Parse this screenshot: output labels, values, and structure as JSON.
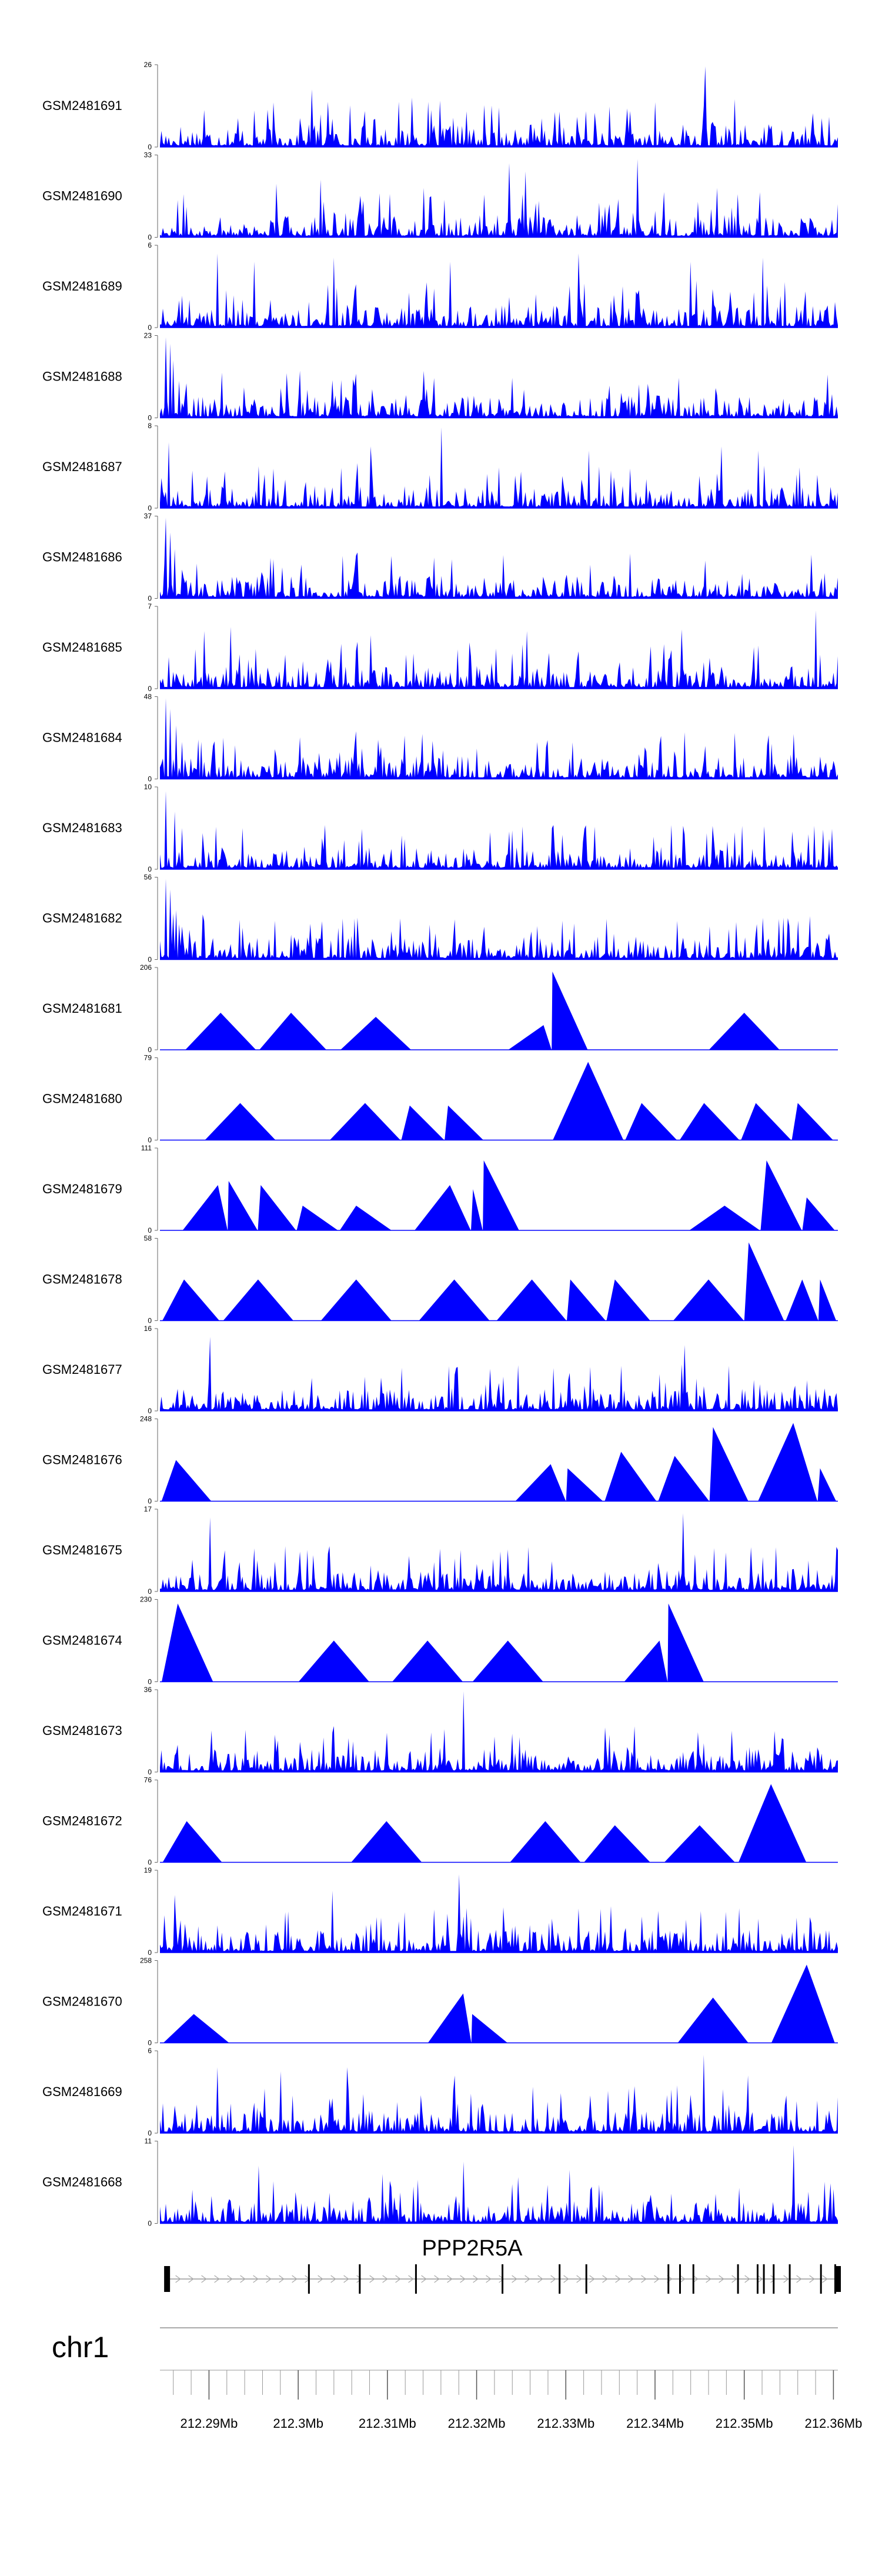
{
  "chart_data": {
    "type": "area",
    "title": "",
    "color": "#0000ff",
    "xlim_mb": [
      212.2845,
      212.3605
    ],
    "ylim_min": 0,
    "tracks": [
      {
        "sample": "GSM2481691",
        "ymax": 26,
        "style": "dense",
        "peaks": [
          [
            212.2895,
            0.45
          ],
          [
            212.2933,
            0.35
          ],
          [
            212.3015,
            0.7
          ],
          [
            212.3033,
            0.55
          ],
          [
            212.3127,
            0.6
          ],
          [
            212.3313,
            0.3
          ],
          [
            212.3456,
            0.98
          ],
          [
            212.3587,
            0.35
          ]
        ]
      },
      {
        "sample": "GSM2481690",
        "ymax": 33,
        "style": "sparse",
        "peaks": [
          [
            212.2975,
            0.65
          ],
          [
            212.3025,
            0.7
          ],
          [
            212.314,
            0.6
          ],
          [
            212.3237,
            0.9
          ],
          [
            212.3255,
            0.8
          ],
          [
            212.338,
            0.95
          ],
          [
            212.341,
            0.55
          ],
          [
            212.347,
            0.6
          ]
        ]
      },
      {
        "sample": "GSM2481689",
        "ymax": 6,
        "style": "dense",
        "peaks": [
          [
            212.291,
            0.9
          ],
          [
            212.295,
            0.8
          ],
          [
            212.304,
            0.85
          ],
          [
            212.317,
            0.8
          ],
          [
            212.3315,
            0.9
          ],
          [
            212.344,
            0.8
          ],
          [
            212.352,
            0.85
          ]
        ]
      },
      {
        "sample": "GSM2481688",
        "ymax": 23,
        "style": "dense",
        "peaks": [
          [
            212.2852,
            0.98
          ],
          [
            212.2856,
            0.9
          ],
          [
            212.286,
            0.7
          ],
          [
            212.2866,
            0.45
          ],
          [
            212.2875,
            0.25
          ]
        ]
      },
      {
        "sample": "GSM2481687",
        "ymax": 8,
        "style": "dense",
        "peaks": [
          [
            212.2855,
            0.8
          ],
          [
            212.3082,
            0.75
          ],
          [
            212.316,
            0.98
          ],
          [
            212.3325,
            0.7
          ],
          [
            212.3475,
            0.75
          ],
          [
            212.3515,
            0.7
          ]
        ]
      },
      {
        "sample": "GSM2481686",
        "ymax": 37,
        "style": "dense",
        "peaks": [
          [
            212.2852,
            0.98
          ],
          [
            212.2856,
            0.8
          ],
          [
            212.2862,
            0.6
          ],
          [
            212.287,
            0.35
          ],
          [
            212.288,
            0.2
          ]
        ]
      },
      {
        "sample": "GSM2481685",
        "ymax": 7,
        "style": "dense",
        "peaks": [
          [
            212.2895,
            0.7
          ],
          [
            212.2925,
            0.75
          ],
          [
            212.3082,
            0.65
          ],
          [
            212.3256,
            0.7
          ],
          [
            212.343,
            0.72
          ],
          [
            212.358,
            0.95
          ]
        ]
      },
      {
        "sample": "GSM2481684",
        "ymax": 48,
        "style": "dense",
        "peaks": [
          [
            212.2852,
            0.98
          ],
          [
            212.2857,
            0.85
          ],
          [
            212.2863,
            0.65
          ],
          [
            212.287,
            0.45
          ],
          [
            212.288,
            0.25
          ]
        ]
      },
      {
        "sample": "GSM2481683",
        "ymax": 10,
        "style": "dense",
        "peaks": [
          [
            212.2852,
            0.95
          ],
          [
            212.2862,
            0.7
          ],
          [
            212.287,
            0.5
          ],
          [
            212.3215,
            0.45
          ],
          [
            212.3285,
            0.5
          ],
          [
            212.349,
            0.45
          ]
        ]
      },
      {
        "sample": "GSM2481682",
        "ymax": 56,
        "style": "dense",
        "peaks": [
          [
            212.2852,
            0.98
          ],
          [
            212.2857,
            0.85
          ],
          [
            212.2863,
            0.6
          ],
          [
            212.287,
            0.4
          ],
          [
            212.288,
            0.2
          ]
        ]
      },
      {
        "sample": "GSM2481681",
        "ymax": 206,
        "style": "spiky",
        "peaks": [
          [
            212.2913,
            0.45
          ],
          [
            212.2992,
            0.45
          ],
          [
            212.3087,
            0.4
          ],
          [
            212.3275,
            0.3
          ],
          [
            212.3285,
            0.95
          ],
          [
            212.35,
            0.45
          ]
        ]
      },
      {
        "sample": "GSM2481680",
        "ymax": 79,
        "style": "spiky",
        "peaks": [
          [
            212.2935,
            0.45
          ],
          [
            212.3075,
            0.45
          ],
          [
            212.3125,
            0.42
          ],
          [
            212.3168,
            0.42
          ],
          [
            212.3325,
            0.95
          ],
          [
            212.3385,
            0.45
          ],
          [
            212.3455,
            0.45
          ],
          [
            212.3513,
            0.45
          ],
          [
            212.356,
            0.45
          ]
        ]
      },
      {
        "sample": "GSM2481679",
        "ymax": 111,
        "style": "spiky",
        "peaks": [
          [
            212.291,
            0.55
          ],
          [
            212.2922,
            0.6
          ],
          [
            212.2958,
            0.55
          ],
          [
            212.3005,
            0.3
          ],
          [
            212.3065,
            0.3
          ],
          [
            212.317,
            0.55
          ],
          [
            212.3196,
            0.5
          ],
          [
            212.3208,
            0.85
          ],
          [
            212.3478,
            0.3
          ],
          [
            212.3525,
            0.85
          ],
          [
            212.357,
            0.4
          ]
        ]
      },
      {
        "sample": "GSM2481678",
        "ymax": 58,
        "style": "spiky",
        "peaks": [
          [
            212.2872,
            0.5
          ],
          [
            212.2955,
            0.5
          ],
          [
            212.3065,
            0.5
          ],
          [
            212.3175,
            0.5
          ],
          [
            212.3262,
            0.5
          ],
          [
            212.3305,
            0.5
          ],
          [
            212.3355,
            0.5
          ],
          [
            212.346,
            0.5
          ],
          [
            212.3505,
            0.95
          ],
          [
            212.3565,
            0.5
          ],
          [
            212.3585,
            0.5
          ]
        ]
      },
      {
        "sample": "GSM2481677",
        "ymax": 16,
        "style": "dense",
        "peaks": [
          [
            212.2902,
            0.9
          ],
          [
            212.3015,
            0.4
          ],
          [
            212.3055,
            0.25
          ],
          [
            212.3175,
            0.3
          ],
          [
            212.3433,
            0.8
          ],
          [
            212.3455,
            0.3
          ],
          [
            212.3523,
            0.2
          ]
        ]
      },
      {
        "sample": "GSM2481676",
        "ymax": 248,
        "style": "spiky",
        "peaks": [
          [
            212.2863,
            0.5
          ],
          [
            212.3283,
            0.45
          ],
          [
            212.3302,
            0.4
          ],
          [
            212.3362,
            0.6
          ],
          [
            212.3422,
            0.55
          ],
          [
            212.3465,
            0.9
          ],
          [
            212.3555,
            0.95
          ],
          [
            212.3585,
            0.4
          ]
        ]
      },
      {
        "sample": "GSM2481675",
        "ymax": 17,
        "style": "dense",
        "peaks": [
          [
            212.2902,
            0.9
          ],
          [
            212.2985,
            0.55
          ],
          [
            212.3035,
            0.55
          ],
          [
            212.3175,
            0.4
          ],
          [
            212.3432,
            0.95
          ],
          [
            212.3445,
            0.45
          ]
        ]
      },
      {
        "sample": "GSM2481674",
        "ymax": 230,
        "style": "spiky",
        "peaks": [
          [
            212.2865,
            0.95
          ],
          [
            212.304,
            0.5
          ],
          [
            212.3145,
            0.5
          ],
          [
            212.3235,
            0.5
          ],
          [
            212.3405,
            0.5
          ],
          [
            212.3415,
            0.95
          ]
        ]
      },
      {
        "sample": "GSM2481673",
        "ymax": 36,
        "style": "dense",
        "peaks": [
          [
            212.2862,
            0.2
          ],
          [
            212.3028,
            0.42
          ],
          [
            212.3185,
            0.98
          ],
          [
            212.3225,
            0.15
          ],
          [
            212.3455,
            0.35
          ],
          [
            212.3575,
            0.15
          ]
        ]
      },
      {
        "sample": "GSM2481672",
        "ymax": 76,
        "style": "spiky",
        "peaks": [
          [
            212.2875,
            0.5
          ],
          [
            212.3099,
            0.5
          ],
          [
            212.3277,
            0.5
          ],
          [
            212.3355,
            0.45
          ],
          [
            212.345,
            0.45
          ],
          [
            212.353,
            0.95
          ]
        ]
      },
      {
        "sample": "GSM2481671",
        "ymax": 19,
        "style": "dense",
        "peaks": [
          [
            212.2862,
            0.7
          ],
          [
            212.2988,
            0.5
          ],
          [
            212.3038,
            0.75
          ],
          [
            212.318,
            0.95
          ],
          [
            212.323,
            0.55
          ],
          [
            212.3435,
            0.4
          ],
          [
            212.3515,
            0.4
          ]
        ]
      },
      {
        "sample": "GSM2481670",
        "ymax": 258,
        "style": "spiky",
        "peaks": [
          [
            212.2883,
            0.35
          ],
          [
            212.3195,
            0.35
          ],
          [
            212.3185,
            0.6
          ],
          [
            212.357,
            0.95
          ],
          [
            212.3465,
            0.55
          ]
        ]
      },
      {
        "sample": "GSM2481669",
        "ymax": 6,
        "style": "dense",
        "peaks": [
          [
            212.291,
            0.8
          ],
          [
            212.298,
            0.75
          ],
          [
            212.3055,
            0.8
          ],
          [
            212.3175,
            0.7
          ],
          [
            212.3455,
            0.95
          ],
          [
            212.3505,
            0.7
          ]
        ]
      },
      {
        "sample": "GSM2481668",
        "ymax": 11,
        "style": "dense",
        "peaks": [
          [
            212.2955,
            0.7
          ],
          [
            212.3095,
            0.6
          ],
          [
            212.3185,
            0.75
          ],
          [
            212.3305,
            0.65
          ],
          [
            212.3555,
            0.95
          ]
        ]
      }
    ],
    "gene": {
      "name": "PPP2R5A",
      "start_mb": 212.2852,
      "end_mb": 212.3605,
      "strand": "+",
      "exons_mb": [
        212.2853,
        212.3012,
        212.3069,
        212.3132,
        212.3229,
        212.3293,
        212.3323,
        212.3415,
        212.3428,
        212.3443,
        212.3493,
        212.3515,
        212.3522,
        212.3533,
        212.3551,
        212.3586,
        212.3602,
        212.3605
      ]
    },
    "axis": {
      "chromosome": "chr1",
      "tick_labels": [
        "212.29Mb",
        "212.3Mb",
        "212.31Mb",
        "212.32Mb",
        "212.33Mb",
        "212.34Mb",
        "212.35Mb",
        "212.36Mb"
      ],
      "tick_values_mb": [
        212.29,
        212.3,
        212.31,
        212.32,
        212.33,
        212.34,
        212.35,
        212.36
      ],
      "minor_step_mb": 0.002
    }
  }
}
